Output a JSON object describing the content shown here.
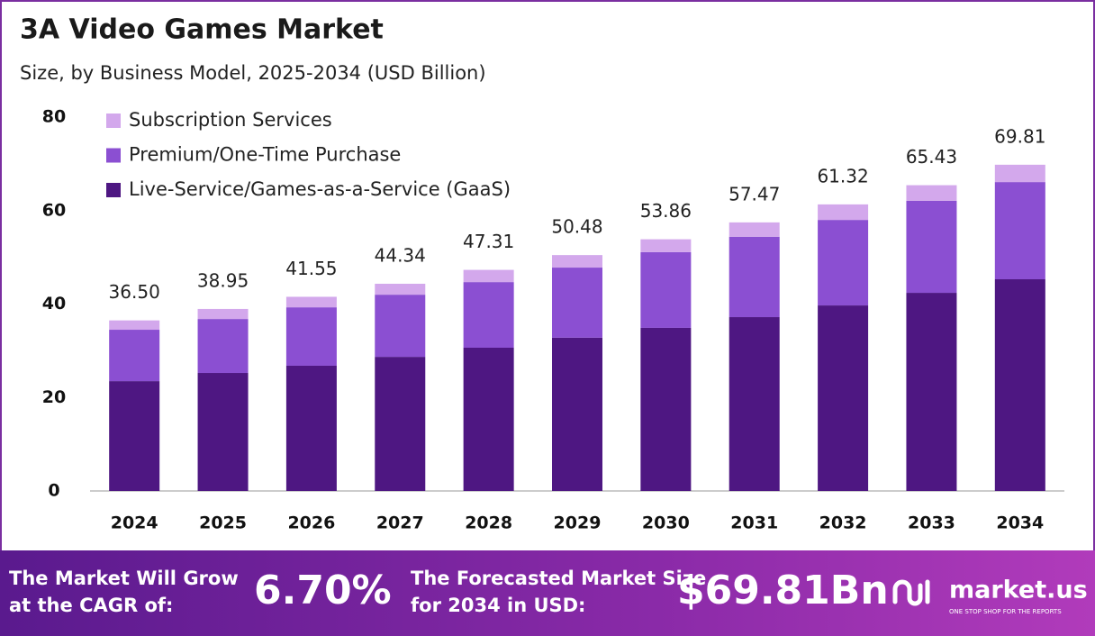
{
  "chart_data": {
    "type": "stacked-bar",
    "title": "3A Video Games Market",
    "subtitle": "Size, by Business Model, 2025-2034 (USD Billion)",
    "categories": [
      "2024",
      "2025",
      "2026",
      "2027",
      "2028",
      "2029",
      "2030",
      "2031",
      "2032",
      "2033",
      "2034"
    ],
    "series": [
      {
        "name": "Live-Service/Games-as-a-Service (GaaS)",
        "color": "#4e1782",
        "values": [
          23.5,
          25.25,
          26.8,
          28.7,
          30.65,
          32.8,
          34.9,
          37.2,
          39.7,
          42.4,
          45.3
        ]
      },
      {
        "name": "Premium/One-Time Purchase",
        "color": "#8b4fd2",
        "values": [
          11.0,
          11.55,
          12.5,
          13.3,
          14.05,
          15.0,
          16.2,
          17.2,
          18.3,
          19.7,
          20.8
        ]
      },
      {
        "name": "Subscription Services",
        "color": "#d3a8ec",
        "values": [
          2.0,
          2.15,
          2.25,
          2.34,
          2.61,
          2.68,
          2.76,
          3.07,
          3.32,
          3.33,
          3.71
        ]
      }
    ],
    "totals": {
      "values": [
        36.5,
        38.95,
        41.55,
        44.34,
        47.31,
        50.48,
        53.86,
        57.47,
        61.32,
        65.43,
        69.81
      ],
      "value_labels": [
        "36.50",
        "38.95",
        "41.55",
        "44.34",
        "47.31",
        "50.48",
        "53.86",
        "57.47",
        "61.32",
        "65.43",
        "69.81"
      ]
    },
    "ylim": [
      0,
      80
    ],
    "yticks": [
      0,
      20,
      40,
      60,
      80
    ],
    "grid": false,
    "legend": "top-left"
  },
  "footer": {
    "cagr_text": "The Market Will Grow at the CAGR of:",
    "cagr_value": "6.70%",
    "forecast_text": "The Forecasted Market Size for 2034 in USD:",
    "forecast_value": "$69.81Bn",
    "brand": "market.us",
    "tagline": "ONE STOP SHOP FOR THE REPORTS"
  }
}
